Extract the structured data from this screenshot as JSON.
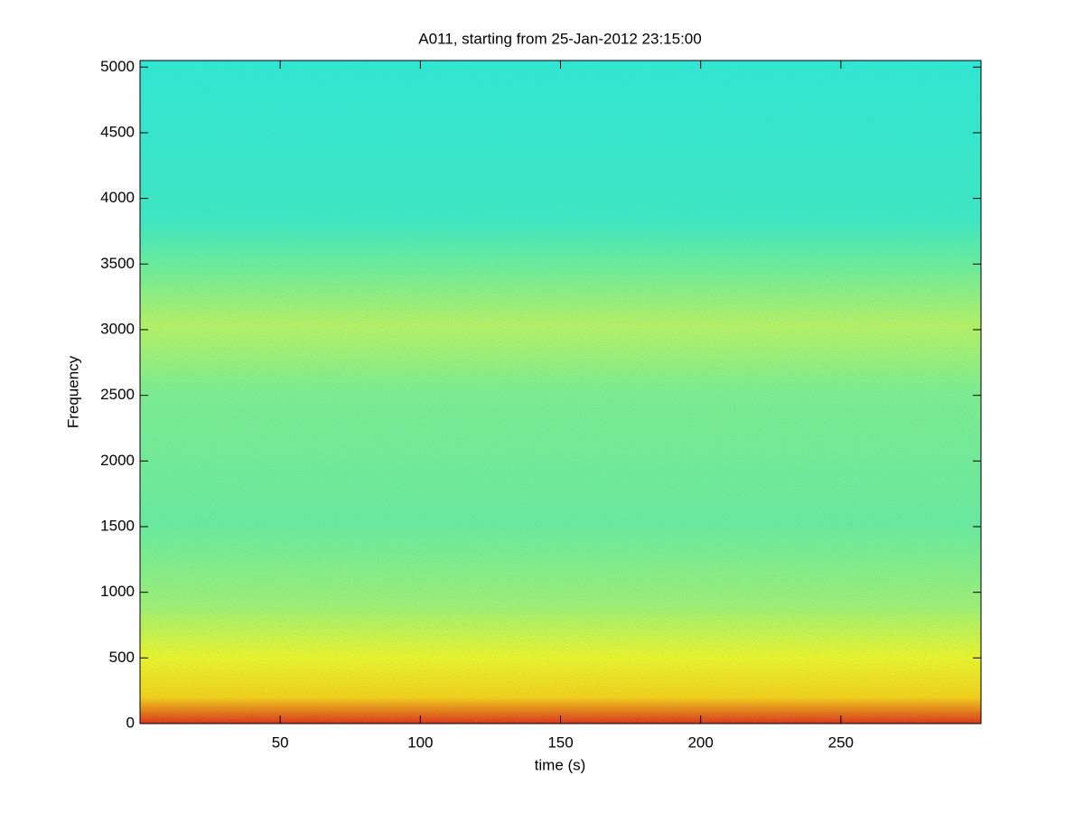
{
  "chart_data": {
    "type": "spectrogram",
    "title": "A011, starting from 25-Jan-2012 23:15:00",
    "x_label": "time (s)",
    "y_label": "Frequency",
    "xlim": [
      0,
      300
    ],
    "xticks": [
      50,
      100,
      150,
      200,
      250
    ],
    "ylim": [
      0,
      5050
    ],
    "yticks": [
      0,
      500,
      1000,
      1500,
      2000,
      2500,
      3000,
      3500,
      4000,
      4500,
      5000
    ]
  }
}
